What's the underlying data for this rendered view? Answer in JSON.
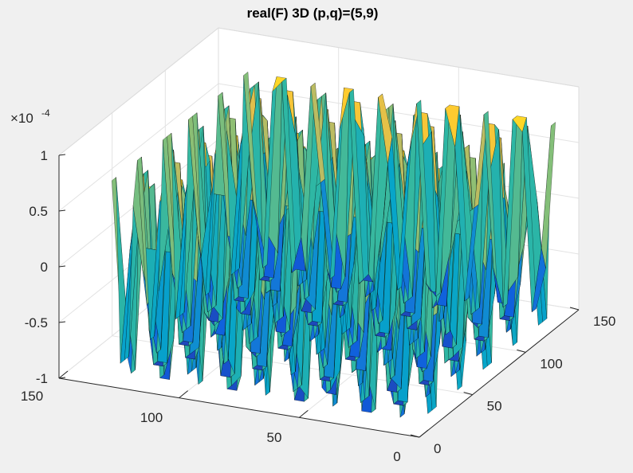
{
  "chart_data": {
    "type": "surface",
    "title": "real(F) 3D (p,q)=(5,9)",
    "xlabel": "",
    "ylabel": "",
    "zlabel": "",
    "xlim": [
      0,
      150
    ],
    "ylim": [
      0,
      150
    ],
    "zlim": [
      -1,
      1
    ],
    "x_ticks": [
      0,
      50,
      100,
      150
    ],
    "y_ticks": [
      0,
      50,
      100,
      150
    ],
    "z_ticks": [
      -1,
      -0.5,
      0,
      0.5,
      1
    ],
    "x_tick_labels": [
      "150",
      "100",
      "50",
      "0"
    ],
    "y_tick_labels": [
      "0",
      "50",
      "100",
      "150"
    ],
    "z_tick_labels": [
      "-1",
      "-0.5",
      "0",
      "0.5",
      "1"
    ],
    "z_exponent": {
      "base": "×10",
      "power": "-4"
    },
    "z_scale": 0.0001,
    "grid": true,
    "colormap": "parula",
    "colormap_stops": [
      "#352a87",
      "#0f5cdd",
      "#1481d6",
      "#06a4ca",
      "#2eb7a4",
      "#87bf77",
      "#d1bb59",
      "#fec832",
      "#f9fb0e"
    ],
    "surface_extent": {
      "x": [
        0,
        128
      ],
      "y": [
        0,
        128
      ]
    },
    "surface_description_values": {
      "ridges_along_x": 9,
      "ridges_along_y": 5,
      "z_max": 0.85,
      "z_min": -0.85
    },
    "surface_edge_color": "#000000"
  }
}
